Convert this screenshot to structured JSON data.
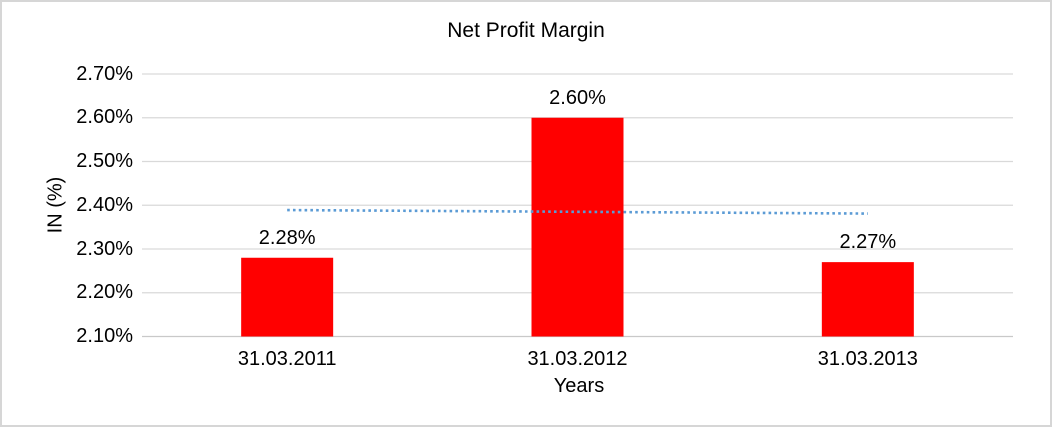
{
  "window": {
    "background_color": "#FFFFFF",
    "border_color": "#D6D6D6"
  },
  "chart_data": {
    "type": "bar",
    "title": "Net Profit Margin",
    "xlabel": "Years",
    "ylabel": "IN (%)",
    "categories": [
      "31.03.2011",
      "31.03.2012",
      "31.03.2013"
    ],
    "values": [
      2.28,
      2.6,
      2.27
    ],
    "value_labels": [
      "2.28%",
      "2.60%",
      "2.27%"
    ],
    "ylim": [
      2.1,
      2.7
    ],
    "ytick_step": 0.1,
    "ytick_labels": [
      "2.10%",
      "2.20%",
      "2.30%",
      "2.40%",
      "2.50%",
      "2.60%",
      "2.70%"
    ],
    "grid": true,
    "legend_position": "none",
    "bar_color": "#FF0000",
    "gridline_color": "#D9D9D9",
    "axis_line_color": "#C9C9C9",
    "trendline": {
      "type": "linear",
      "style": "dotted",
      "color": "#5B9BD5",
      "start_value": 2.389,
      "end_value": 2.381
    }
  }
}
